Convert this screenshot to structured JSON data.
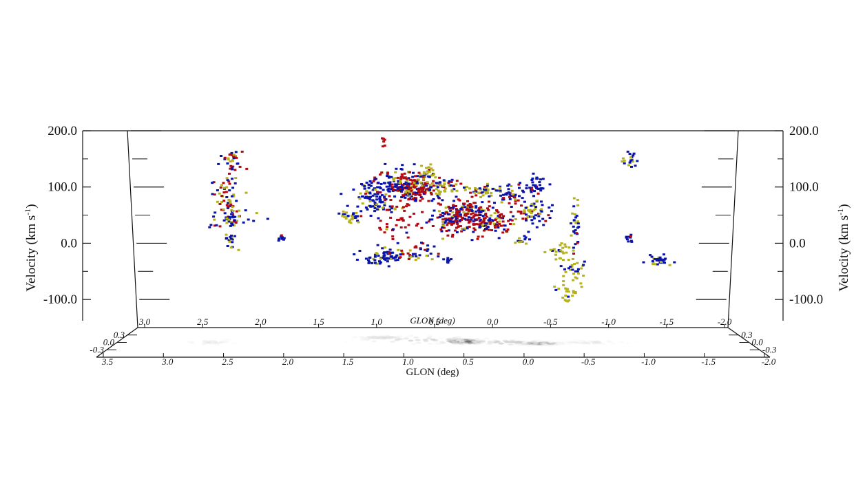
{
  "chart_data": {
    "type": "scatter",
    "projection": "3d-position-position-velocity",
    "x_axis": {
      "label": "GLON (deg)",
      "ticks": [
        "3.5",
        "3.0",
        "2.5",
        "2.0",
        "1.5",
        "1.0",
        "0.5",
        "0.0",
        "-0.5",
        "-1.0",
        "-1.5"
      ],
      "tick_values": [
        3.5,
        3.0,
        2.5,
        2.0,
        1.5,
        1.0,
        0.5,
        0.0,
        -0.5,
        -1.0,
        -1.5
      ],
      "range": [
        4.0,
        -2.0
      ]
    },
    "y_axis_left": {
      "label": "Velocity (km s",
      "label_sup": "-1",
      "label_end": ")",
      "ticks": [
        "200.0",
        "100.0",
        "0.0",
        "-100.0"
      ],
      "tick_values": [
        200,
        100,
        0,
        -100
      ],
      "range": [
        -150,
        200
      ]
    },
    "y_axis_right": {
      "label": "Velocity (km s",
      "label_sup": "-1",
      "label_end": ")",
      "ticks": [
        "200.0",
        "100.0",
        "0.0",
        "-100.0"
      ]
    },
    "floor": {
      "back_label": "GLON (deg)",
      "back_ticks": [
        "3.0",
        "2.5",
        "2.0",
        "1.5",
        "1.0",
        "0.5",
        "0.0",
        "-0.5",
        "-1.0",
        "-1.5",
        "-2.0"
      ],
      "front_label": "GLON (deg)",
      "front_ticks": [
        "3.5",
        "3.0",
        "2.5",
        "2.0",
        "1.5",
        "1.0",
        "0.5",
        "0.0",
        "-0.5",
        "-1.0",
        "-1.5",
        "-2.0"
      ],
      "left_ticks": [
        "0.3",
        "0.0",
        "-0.3"
      ],
      "right_ticks": [
        "0.3",
        "0.0",
        "-0.3"
      ]
    },
    "series_colors": {
      "blue": "#0a14a8",
      "red": "#b20a12",
      "yellow": "#b5b21c"
    },
    "clumps": [
      {
        "l": 3.05,
        "v": 145,
        "sl": 0.06,
        "sv": 14,
        "n": 30,
        "mix": [
          0.2,
          0.6,
          0.2
        ]
      },
      {
        "l": 3.1,
        "v": 100,
        "sl": 0.06,
        "sv": 22,
        "n": 40,
        "mix": [
          0.4,
          0.4,
          0.2
        ]
      },
      {
        "l": 3.08,
        "v": 65,
        "sl": 0.05,
        "sv": 12,
        "n": 26,
        "mix": [
          0.3,
          0.2,
          0.5
        ]
      },
      {
        "l": 3.05,
        "v": 43,
        "sl": 0.12,
        "sv": 8,
        "n": 40,
        "mix": [
          0.6,
          0.1,
          0.3
        ]
      },
      {
        "l": 3.05,
        "v": 5,
        "sl": 0.04,
        "sv": 6,
        "n": 18,
        "mix": [
          0.5,
          0.0,
          0.5
        ]
      },
      {
        "l": 2.54,
        "v": 10,
        "sl": 0.02,
        "sv": 5,
        "n": 8,
        "mix": [
          0.9,
          0.1,
          0.0
        ]
      },
      {
        "l": 1.5,
        "v": 186,
        "sl": 0.01,
        "sv": 6,
        "n": 6,
        "mix": [
          0.0,
          1.0,
          0.0
        ]
      },
      {
        "l": 1.85,
        "v": 48,
        "sl": 0.05,
        "sv": 5,
        "n": 25,
        "mix": [
          0.3,
          0.0,
          0.7
        ]
      },
      {
        "l": 1.6,
        "v": 80,
        "sl": 0.12,
        "sv": 20,
        "n": 120,
        "mix": [
          0.75,
          0.1,
          0.15
        ]
      },
      {
        "l": 1.3,
        "v": 105,
        "sl": 0.1,
        "sv": 14,
        "n": 130,
        "mix": [
          0.6,
          0.25,
          0.15
        ]
      },
      {
        "l": 1.15,
        "v": 95,
        "sl": 0.1,
        "sv": 12,
        "n": 100,
        "mix": [
          0.35,
          0.5,
          0.15
        ]
      },
      {
        "l": 1.3,
        "v": 40,
        "sl": 0.12,
        "sv": 25,
        "n": 50,
        "mix": [
          0.1,
          0.85,
          0.05
        ]
      },
      {
        "l": 1.05,
        "v": 125,
        "sl": 0.06,
        "sv": 8,
        "n": 30,
        "mix": [
          0.3,
          0.1,
          0.6
        ]
      },
      {
        "l": 0.9,
        "v": 100,
        "sl": 0.08,
        "sv": 8,
        "n": 40,
        "mix": [
          0.4,
          0.3,
          0.3
        ]
      },
      {
        "l": 0.8,
        "v": 45,
        "sl": 0.1,
        "sv": 16,
        "n": 110,
        "mix": [
          0.35,
          0.55,
          0.1
        ]
      },
      {
        "l": 0.6,
        "v": 50,
        "sl": 0.12,
        "sv": 16,
        "n": 120,
        "mix": [
          0.25,
          0.65,
          0.1
        ]
      },
      {
        "l": 0.4,
        "v": 35,
        "sl": 0.1,
        "sv": 10,
        "n": 80,
        "mix": [
          0.4,
          0.45,
          0.15
        ]
      },
      {
        "l": 0.5,
        "v": 95,
        "sl": 0.12,
        "sv": 5,
        "n": 40,
        "mix": [
          0.3,
          0.1,
          0.6
        ]
      },
      {
        "l": 0.25,
        "v": 85,
        "sl": 0.08,
        "sv": 10,
        "n": 45,
        "mix": [
          0.6,
          0.25,
          0.15
        ]
      },
      {
        "l": 0.0,
        "v": 55,
        "sl": 0.1,
        "sv": 12,
        "n": 60,
        "mix": [
          0.5,
          0.35,
          0.15
        ]
      },
      {
        "l": -0.05,
        "v": 100,
        "sl": 0.06,
        "sv": 10,
        "n": 40,
        "mix": [
          0.85,
          0.1,
          0.05
        ]
      },
      {
        "l": 1.5,
        "v": -25,
        "sl": 0.1,
        "sv": 6,
        "n": 70,
        "mix": [
          0.75,
          0.05,
          0.2
        ]
      },
      {
        "l": 1.15,
        "v": -15,
        "sl": 0.12,
        "sv": 8,
        "n": 40,
        "mix": [
          0.55,
          0.3,
          0.15
        ]
      },
      {
        "l": 0.85,
        "v": -30,
        "sl": 0.02,
        "sv": 3,
        "n": 8,
        "mix": [
          0.9,
          0.1,
          0.0
        ]
      },
      {
        "l": 0.1,
        "v": 5,
        "sl": 0.03,
        "sv": 6,
        "n": 12,
        "mix": [
          0.7,
          0.0,
          0.3
        ]
      },
      {
        "l": -0.45,
        "v": 35,
        "sl": 0.02,
        "sv": 22,
        "n": 30,
        "mix": [
          0.6,
          0.2,
          0.2
        ]
      },
      {
        "l": -0.3,
        "v": -15,
        "sl": 0.06,
        "sv": 8,
        "n": 25,
        "mix": [
          0.2,
          0.0,
          0.8
        ]
      },
      {
        "l": -0.45,
        "v": -40,
        "sl": 0.05,
        "sv": 10,
        "n": 25,
        "mix": [
          0.35,
          0.0,
          0.65
        ]
      },
      {
        "l": -0.4,
        "v": -85,
        "sl": 0.06,
        "sv": 10,
        "n": 25,
        "mix": [
          0.15,
          0.0,
          0.85
        ]
      },
      {
        "l": -1.0,
        "v": 148,
        "sl": 0.04,
        "sv": 8,
        "n": 20,
        "mix": [
          0.55,
          0.0,
          0.45
        ]
      },
      {
        "l": -1.0,
        "v": 10,
        "sl": 0.02,
        "sv": 5,
        "n": 10,
        "mix": [
          0.8,
          0.2,
          0.0
        ]
      },
      {
        "l": -1.3,
        "v": -30,
        "sl": 0.06,
        "sv": 4,
        "n": 35,
        "mix": [
          0.8,
          0.0,
          0.2
        ]
      }
    ],
    "floor_emission": [
      {
        "l": 0.7,
        "b": 0.02,
        "sl": 0.12,
        "sb": 0.03,
        "peak": 0.8
      },
      {
        "l": 1.1,
        "b": 0.05,
        "sl": 0.4,
        "sb": 0.05,
        "peak": 0.25
      },
      {
        "l": 0.0,
        "b": -0.02,
        "sl": 0.12,
        "sb": 0.02,
        "peak": 0.5
      },
      {
        "l": 0.3,
        "b": 0.0,
        "sl": 0.25,
        "sb": 0.03,
        "peak": 0.3
      },
      {
        "l": -0.5,
        "b": 0.0,
        "sl": 0.2,
        "sb": 0.02,
        "peak": 0.15
      },
      {
        "l": 3.1,
        "b": 0.0,
        "sl": 0.15,
        "sb": 0.03,
        "peak": 0.12
      },
      {
        "l": 1.5,
        "b": 0.1,
        "sl": 0.15,
        "sb": 0.02,
        "peak": 0.2
      }
    ]
  }
}
